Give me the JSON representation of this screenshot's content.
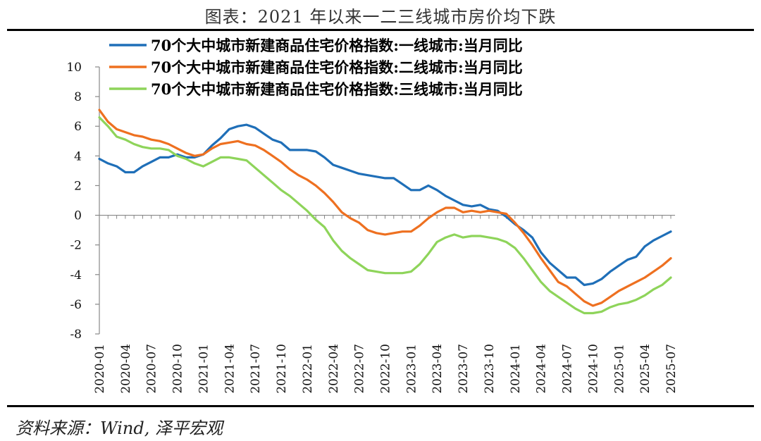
{
  "title": "图表：2021 年以来一二三线城市房价均下跌",
  "source": "资料来源：Wind, 泽平宏观",
  "chart_data": {
    "type": "line",
    "ylim": [
      -8,
      10
    ],
    "yticks": [
      "10",
      "8",
      "6",
      "4",
      "2",
      "0",
      "-2",
      "-4",
      "-6",
      "-8"
    ],
    "ytick_values": [
      10,
      8,
      6,
      4,
      2,
      0,
      -2,
      -4,
      -6,
      -8
    ],
    "xtick_labels": [
      "2020-01",
      "2020-04",
      "2020-07",
      "2020-10",
      "2021-01",
      "2021-04",
      "2021-07",
      "2021-10",
      "2022-01",
      "2022-04",
      "2022-07",
      "2022-10",
      "2023-01",
      "2023-04",
      "2023-07",
      "2023-10",
      "2024-01",
      "2024-04",
      "2024-07",
      "2024-10",
      "2025-01",
      "2025-04",
      "2025-07"
    ],
    "x": [
      "2020-01",
      "2020-02",
      "2020-03",
      "2020-04",
      "2020-05",
      "2020-06",
      "2020-07",
      "2020-08",
      "2020-09",
      "2020-10",
      "2020-11",
      "2020-12",
      "2021-01",
      "2021-02",
      "2021-03",
      "2021-04",
      "2021-05",
      "2021-06",
      "2021-07",
      "2021-08",
      "2021-09",
      "2021-10",
      "2021-11",
      "2021-12",
      "2022-01",
      "2022-02",
      "2022-03",
      "2022-04",
      "2022-05",
      "2022-06",
      "2022-07",
      "2022-08",
      "2022-09",
      "2022-10",
      "2022-11",
      "2022-12",
      "2023-01",
      "2023-02",
      "2023-03",
      "2023-04",
      "2023-05",
      "2023-06",
      "2023-07",
      "2023-08",
      "2023-09",
      "2023-10",
      "2023-11",
      "2023-12",
      "2024-01",
      "2024-02",
      "2024-03",
      "2024-04",
      "2024-05",
      "2024-06",
      "2024-07",
      "2024-08",
      "2024-09",
      "2024-10",
      "2024-11",
      "2024-12",
      "2025-01",
      "2025-02",
      "2025-03",
      "2025-04",
      "2025-05",
      "2025-06",
      "2025-07"
    ],
    "series": [
      {
        "name": "70个大中城市新建商品住宅价格指数:一线城市:当月同比",
        "color": "#1F6FB8",
        "values": [
          3.8,
          3.5,
          3.3,
          2.9,
          2.9,
          3.3,
          3.6,
          3.9,
          3.9,
          4.1,
          3.9,
          3.9,
          4.1,
          4.7,
          5.2,
          5.8,
          6.0,
          6.1,
          5.9,
          5.5,
          5.1,
          4.9,
          4.4,
          4.4,
          4.4,
          4.3,
          3.9,
          3.4,
          3.2,
          3.0,
          2.8,
          2.7,
          2.6,
          2.5,
          2.5,
          2.1,
          1.7,
          1.7,
          2.0,
          1.7,
          1.3,
          1.0,
          0.7,
          0.6,
          0.7,
          0.4,
          0.3,
          -0.1,
          -0.6,
          -1.0,
          -1.5,
          -2.5,
          -3.2,
          -3.7,
          -4.2,
          -4.2,
          -4.7,
          -4.6,
          -4.3,
          -3.8,
          -3.4,
          -3.0,
          -2.8,
          -2.1,
          -1.7,
          -1.4,
          -1.1
        ]
      },
      {
        "name": "70个大中城市新建商品住宅价格指数:二线城市:当月同比",
        "color": "#EE7020",
        "values": [
          7.1,
          6.3,
          5.8,
          5.6,
          5.4,
          5.3,
          5.1,
          5.0,
          4.8,
          4.5,
          4.2,
          4.0,
          4.1,
          4.5,
          4.8,
          4.9,
          5.0,
          4.8,
          4.7,
          4.4,
          4.0,
          3.6,
          3.1,
          2.7,
          2.4,
          2.0,
          1.5,
          0.9,
          0.2,
          -0.2,
          -0.5,
          -1.0,
          -1.2,
          -1.3,
          -1.2,
          -1.1,
          -1.1,
          -0.7,
          -0.2,
          0.2,
          0.5,
          0.5,
          0.2,
          0.3,
          0.2,
          0.3,
          0.2,
          0.1,
          -0.5,
          -1.2,
          -2.0,
          -2.9,
          -3.7,
          -4.5,
          -4.8,
          -5.3,
          -5.8,
          -6.1,
          -5.9,
          -5.5,
          -5.1,
          -4.8,
          -4.5,
          -4.2,
          -3.8,
          -3.4,
          -2.9
        ]
      },
      {
        "name": "70个大中城市新建商品住宅价格指数:三线城市:当月同比",
        "color": "#8ED45A",
        "values": [
          6.6,
          6.0,
          5.3,
          5.1,
          4.8,
          4.6,
          4.5,
          4.5,
          4.4,
          4.0,
          3.8,
          3.5,
          3.3,
          3.6,
          3.9,
          3.9,
          3.8,
          3.7,
          3.2,
          2.7,
          2.2,
          1.7,
          1.3,
          0.8,
          0.3,
          -0.3,
          -0.8,
          -1.7,
          -2.4,
          -2.9,
          -3.3,
          -3.7,
          -3.8,
          -3.9,
          -3.9,
          -3.9,
          -3.8,
          -3.3,
          -2.6,
          -1.8,
          -1.5,
          -1.3,
          -1.5,
          -1.4,
          -1.4,
          -1.5,
          -1.6,
          -1.8,
          -2.2,
          -2.9,
          -3.7,
          -4.5,
          -5.1,
          -5.5,
          -5.9,
          -6.3,
          -6.6,
          -6.6,
          -6.5,
          -6.2,
          -6.0,
          -5.9,
          -5.7,
          -5.4,
          -5.0,
          -4.7,
          -4.2
        ]
      }
    ]
  }
}
